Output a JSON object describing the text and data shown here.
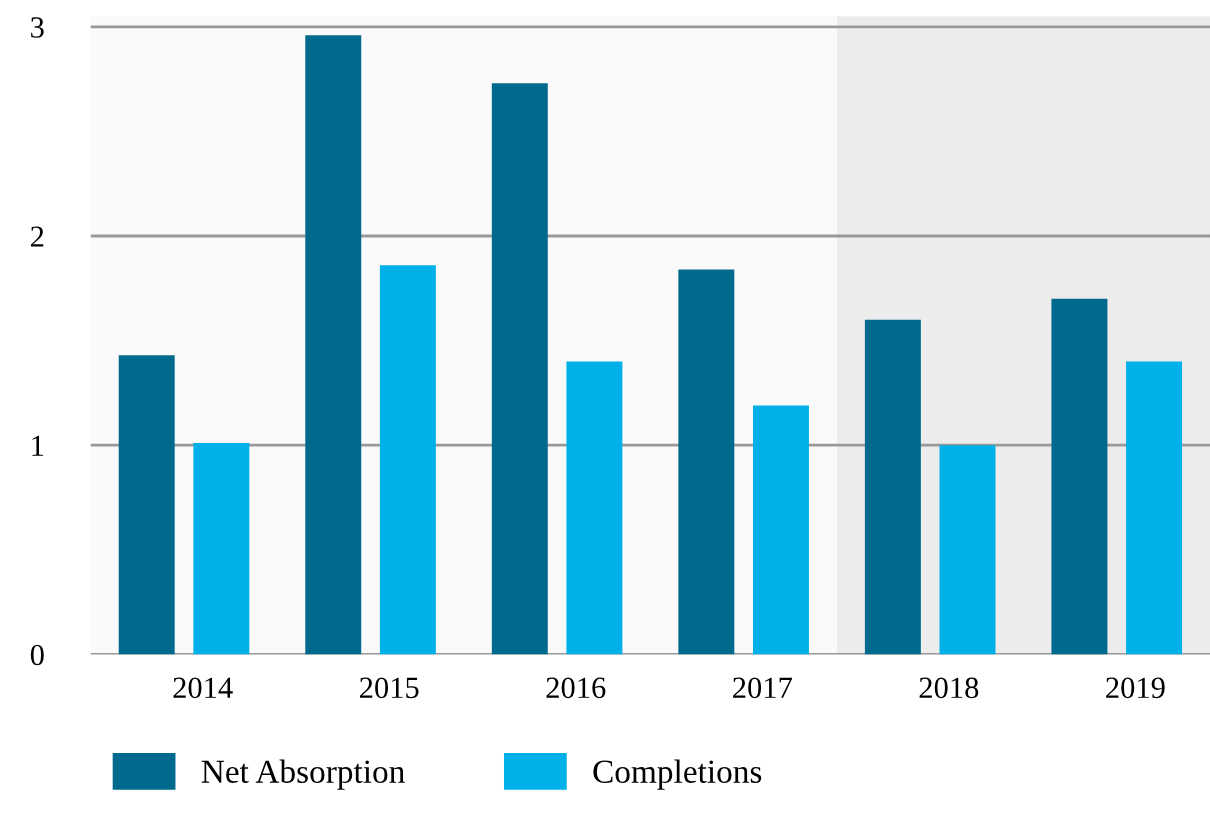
{
  "chart_data": {
    "type": "bar",
    "categories": [
      "2014",
      "2015",
      "2016",
      "2017",
      "2018",
      "2019"
    ],
    "series": [
      {
        "name": "Net Absorption",
        "color": "#006a8e",
        "values": [
          1.43,
          2.96,
          2.73,
          1.84,
          1.6,
          1.7
        ]
      },
      {
        "name": "Completions",
        "color": "#00b0e8",
        "values": [
          1.01,
          1.86,
          1.4,
          1.19,
          1.0,
          1.4
        ]
      }
    ],
    "ylim": [
      0,
      3.05
    ],
    "yticks": [
      0,
      1,
      2,
      3
    ],
    "grid": "y",
    "legend": "bottom left",
    "bands": [
      {
        "axis": "x",
        "from": "2018",
        "to": "2019",
        "color": "#ececec"
      }
    ]
  }
}
